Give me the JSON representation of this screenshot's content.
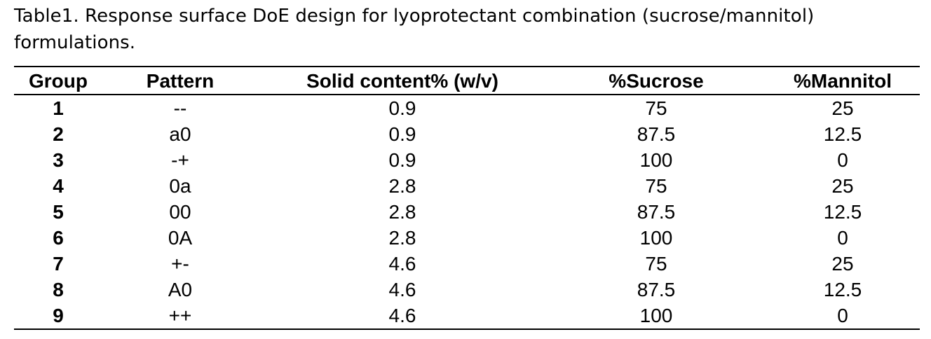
{
  "caption": "Table1. Response surface DoE design for lyoprotectant combination (sucrose/mannitol) formulations.",
  "table": {
    "headers": [
      "Group",
      "Pattern",
      "Solid content% (w/v)",
      "%Sucrose",
      "%Mannitol"
    ],
    "rows": [
      [
        "1",
        "--",
        "0.9",
        "75",
        "25"
      ],
      [
        "2",
        "a0",
        "0.9",
        "87.5",
        "12.5"
      ],
      [
        "3",
        "-+",
        "0.9",
        "100",
        "0"
      ],
      [
        "4",
        "0a",
        "2.8",
        "75",
        "25"
      ],
      [
        "5",
        "00",
        "2.8",
        "87.5",
        "12.5"
      ],
      [
        "6",
        "0A",
        "2.8",
        "100",
        "0"
      ],
      [
        "7",
        "+-",
        "4.6",
        "75",
        "25"
      ],
      [
        "8",
        "A0",
        "4.6",
        "87.5",
        "12.5"
      ],
      [
        "9",
        "++",
        "4.6",
        "100",
        "0"
      ]
    ]
  }
}
